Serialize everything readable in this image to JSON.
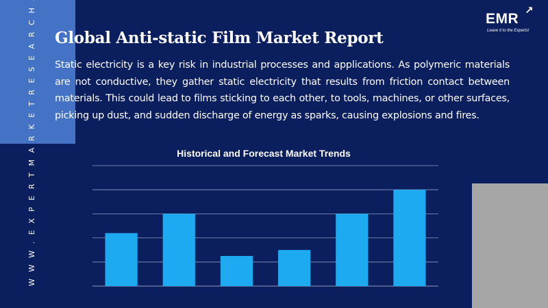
{
  "side_text": "W W W . E X P E R T M A R K E T R E S E A R C H . C O M",
  "logo": {
    "brand": "EMR",
    "tagline": "Leave it to the Experts!"
  },
  "title": "Global Anti-static Film Market Report",
  "description": "Static electricity is a key risk in industrial processes and applications. As polymeric materials are not conductive, they gather static electricity that results from friction contact between materials. This could lead to films sticking to each other, to tools, machines, or other surfaces, picking up dust, and sudden discharge of energy as sparks, causing explosions and fires.",
  "colors": {
    "background": "#0b1f5e",
    "accent": "#4472c4",
    "bar": "#1eaaf1",
    "grid": "#8c9bc4",
    "grey_block": "#a6a6a6"
  },
  "chart_data": {
    "type": "bar",
    "title": "Historical and Forecast Market Trends",
    "categories": [
      "",
      "",
      "",
      "",
      "",
      ""
    ],
    "values": [
      2.2,
      3.0,
      1.25,
      1.5,
      3.0,
      4.0
    ],
    "ylim": [
      0,
      5
    ],
    "grid": true,
    "axis_labels_shown": false
  }
}
